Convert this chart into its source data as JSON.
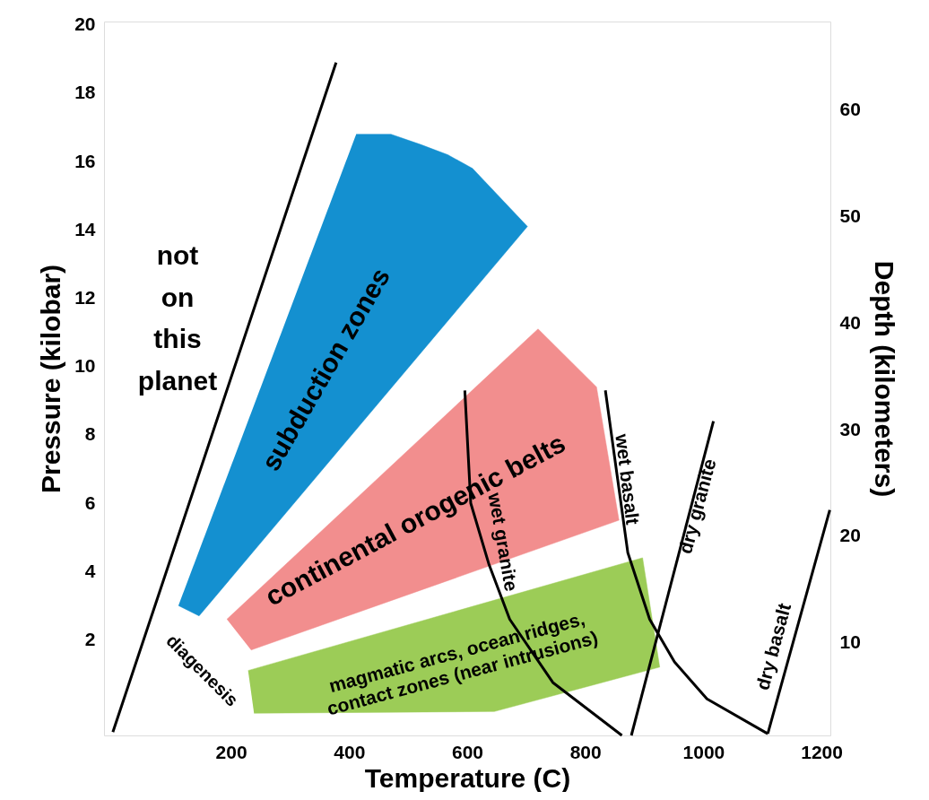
{
  "chart_data": {
    "type": "line",
    "xlabel": "Temperature (C)",
    "ylabel": "Pressure (kilobar)",
    "y2label": "Depth (kilometers)",
    "xlim": [
      -15,
      1215
    ],
    "xticks": [
      200,
      400,
      600,
      800,
      1000,
      1200
    ],
    "ylim": [
      -0.8,
      20.1
    ],
    "yticks": [
      2,
      4,
      6,
      8,
      10,
      12,
      14,
      16,
      18,
      20
    ],
    "y2lim": [
      1.3,
      68.3
    ],
    "y2ticks": [
      10,
      20,
      30,
      40,
      50,
      60
    ],
    "grid": false,
    "marker": "none",
    "line_style": "solid",
    "series": [
      {
        "name": "subduction zones",
        "type": "area",
        "color": "#1490d0",
        "x": [
          412,
          471,
          521,
          567,
          609,
          702,
          146,
          111
        ],
        "values": [
          16.8,
          16.8,
          16.5,
          16.2,
          15.8,
          14.1,
          2.7,
          3.0
        ]
      },
      {
        "name": "continental orogenic belts",
        "type": "area",
        "color": "#f28e8e",
        "x": [
          193,
          720,
          819,
          857,
          234
        ],
        "values": [
          2.6,
          11.1,
          9.4,
          5.5,
          1.7
        ]
      },
      {
        "name": "magmatic arcs, ocean ridges,\ncontact zones (near intrusions)",
        "type": "area",
        "color": "#9ccc57",
        "x": [
          229,
          897,
          926,
          646,
          239
        ],
        "values": [
          1.1,
          4.4,
          1.2,
          -0.1,
          -0.15
        ]
      },
      {
        "type": "line",
        "color": "#000000",
        "x": [
          0,
          378
        ],
        "values": [
          -0.7,
          18.9
        ]
      },
      {
        "name": "wet granite",
        "type": "line",
        "color": "#000000",
        "x": [
          596,
          606,
          637,
          672,
          745,
          862
        ],
        "values": [
          9.3,
          6.0,
          4.2,
          2.6,
          0.75,
          -0.8
        ]
      },
      {
        "name": "wet basalt",
        "type": "line",
        "color": "#000000",
        "x": [
          834,
          872,
          909,
          951,
          1006,
          1109
        ],
        "values": [
          9.3,
          4.55,
          2.6,
          1.35,
          0.27,
          -0.75
        ]
      },
      {
        "name": "dry granite",
        "type": "line",
        "color": "#000000",
        "x": [
          878,
          1017
        ],
        "values": [
          -0.8,
          8.4
        ]
      },
      {
        "name": "dry basalt",
        "type": "line",
        "color": "#000000",
        "x": [
          1109,
          1214
        ],
        "values": [
          -0.75,
          5.8
        ]
      }
    ],
    "annotations": [
      "not\non\nthis\nplanet",
      "diagenesis"
    ]
  }
}
